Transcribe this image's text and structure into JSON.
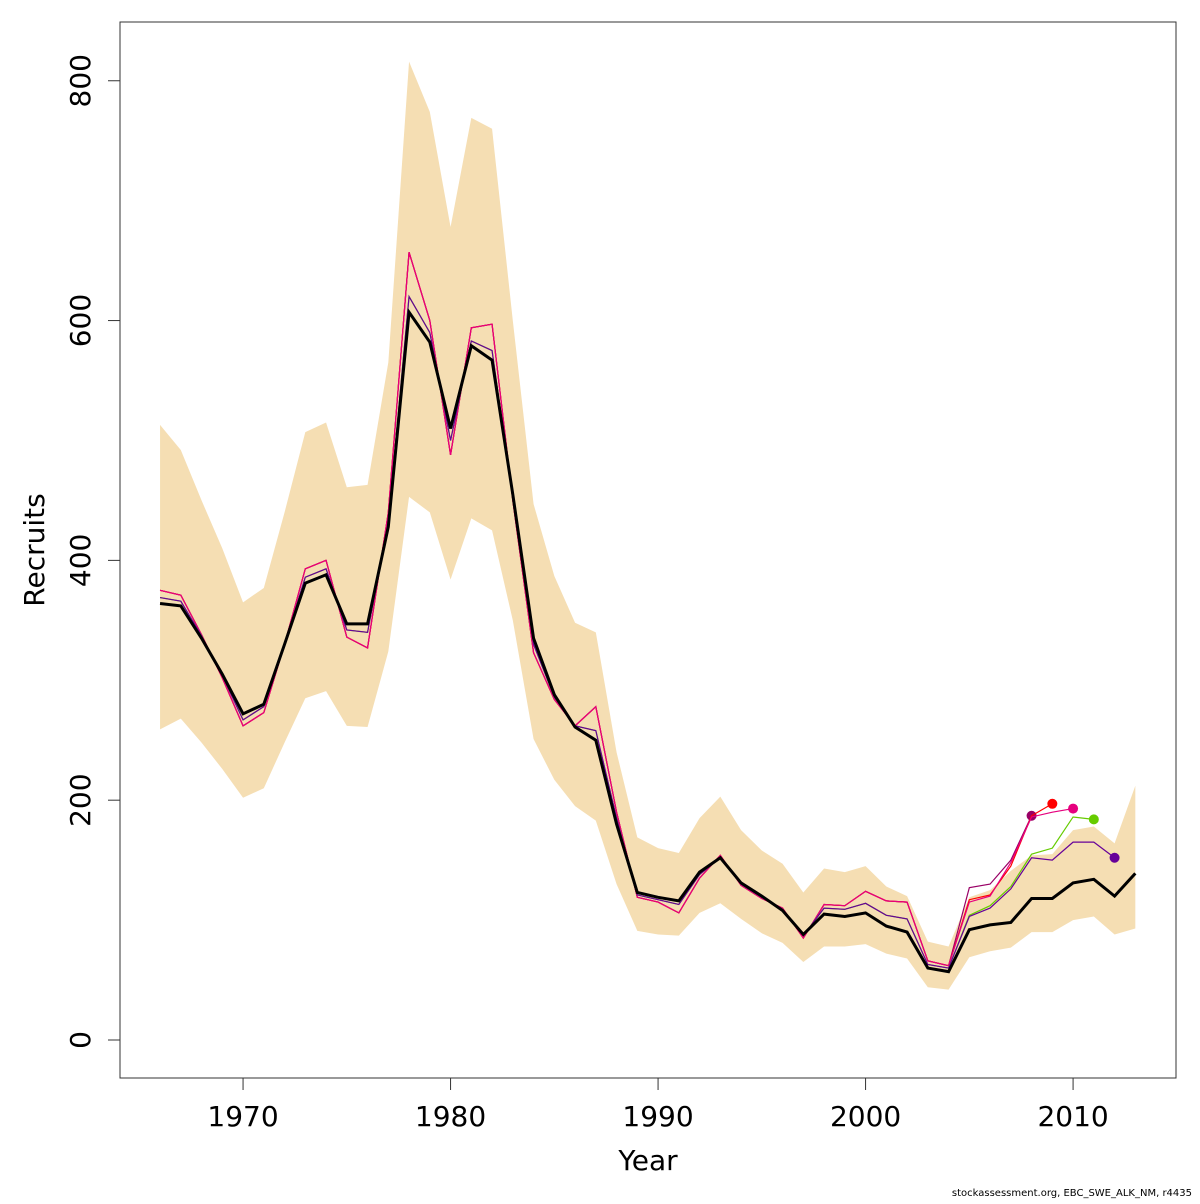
{
  "chart_data": {
    "type": "line",
    "x_label": "Year",
    "y_label": "Recruits",
    "footnote": "stockassessment.org, EBC_SWE_ALK_NM, r4435",
    "xlim": [
      1964.07,
      2014.96
    ],
    "ylim": [
      -31.7,
      849
    ],
    "xticks": [
      1970,
      1980,
      1990,
      2000,
      2010
    ],
    "yticks": [
      0,
      200,
      400,
      600,
      800
    ],
    "x": [
      1966,
      1967,
      1968,
      1969,
      1970,
      1971,
      1972,
      1973,
      1974,
      1975,
      1976,
      1977,
      1978,
      1979,
      1980,
      1981,
      1982,
      1983,
      1984,
      1985,
      1986,
      1987,
      1988,
      1989,
      1990,
      1991,
      1992,
      1993,
      1994,
      1995,
      1996,
      1997,
      1998,
      1999,
      2000,
      2001,
      2002,
      2003,
      2004,
      2005,
      2006,
      2007,
      2008,
      2009,
      2010,
      2011,
      2012,
      2013
    ],
    "band": {
      "color": "#f5deb3",
      "upper": [
        513,
        492,
        450,
        410,
        365,
        377,
        440,
        507,
        515,
        461,
        463,
        565,
        816,
        774,
        678,
        769,
        760,
        600,
        447,
        387,
        348,
        340,
        240,
        169,
        160,
        156,
        185,
        203,
        175,
        158,
        147,
        123,
        143,
        140,
        145,
        128,
        120,
        82,
        78,
        119,
        125,
        141,
        154,
        155,
        175,
        178,
        164,
        212
      ],
      "lower": [
        259,
        268,
        248,
        226,
        202,
        210,
        248,
        285,
        291,
        262,
        261,
        324,
        453,
        440,
        384,
        435,
        425,
        350,
        251,
        217,
        195,
        183,
        130,
        91,
        88,
        87,
        106,
        114,
        101,
        89,
        81,
        65,
        78,
        78,
        80,
        72,
        68,
        44,
        42,
        69,
        74,
        77,
        90,
        90,
        100,
        103,
        88,
        93
      ]
    },
    "series": [
      {
        "color": "#990066",
        "values": [
          375,
          371,
          338,
          302,
          262,
          273,
          330,
          393,
          400,
          336,
          327,
          440,
          657,
          600,
          488,
          594,
          597,
          450,
          323,
          284,
          262,
          278,
          190,
          119,
          115,
          106,
          135,
          154,
          129,
          118,
          110,
          85,
          113,
          112,
          124,
          116,
          115,
          66,
          62,
          127,
          130,
          150,
          187,
          null,
          null,
          null,
          null,
          null
        ]
      },
      {
        "color": "#ff0000",
        "values": [
          375,
          371,
          338,
          302,
          262,
          273,
          330,
          393,
          400,
          336,
          327,
          440,
          657,
          600,
          488,
          594,
          597,
          450,
          323,
          284,
          262,
          278,
          190,
          119,
          115,
          106,
          135,
          154,
          129,
          118,
          110,
          85,
          113,
          112,
          124,
          116,
          115,
          66,
          62,
          117,
          121,
          145,
          187,
          197,
          null,
          null,
          null,
          null
        ]
      },
      {
        "color": "#e6007e",
        "values": [
          375,
          371,
          338,
          302,
          262,
          273,
          330,
          393,
          400,
          336,
          327,
          440,
          657,
          600,
          488,
          594,
          597,
          450,
          323,
          284,
          262,
          278,
          190,
          119,
          115,
          106,
          135,
          154,
          129,
          118,
          110,
          85,
          113,
          112,
          124,
          116,
          115,
          66,
          62,
          115,
          120,
          148,
          186,
          190,
          193,
          null,
          null,
          null
        ]
      },
      {
        "color": "#66cc00",
        "values": [
          369,
          366,
          337,
          304,
          267,
          278,
          330,
          386,
          393,
          342,
          340,
          432,
          620,
          590,
          500,
          583,
          575,
          452,
          330,
          286,
          262,
          258,
          185,
          121,
          117,
          113,
          138,
          152,
          130,
          119,
          109,
          87,
          110,
          109,
          114,
          104,
          101,
          63,
          60,
          104,
          112,
          128,
          155,
          160,
          186,
          184,
          null,
          null
        ]
      },
      {
        "color": "#660099",
        "values": [
          369,
          366,
          337,
          304,
          267,
          278,
          330,
          386,
          393,
          342,
          340,
          432,
          620,
          590,
          500,
          583,
          575,
          452,
          330,
          286,
          262,
          258,
          185,
          121,
          117,
          113,
          138,
          152,
          130,
          119,
          109,
          87,
          110,
          109,
          114,
          104,
          101,
          63,
          60,
          103,
          110,
          126,
          152,
          150,
          165,
          165,
          152,
          null
        ]
      },
      {
        "color": "#000000",
        "values": [
          364,
          362,
          335,
          305,
          272,
          280,
          330,
          381,
          388,
          347,
          347,
          428,
          607,
          582,
          510,
          579,
          567,
          455,
          335,
          288,
          261,
          250,
          180,
          123,
          119,
          116,
          140,
          152,
          131,
          120,
          108,
          88,
          105,
          103,
          106,
          95,
          90,
          60,
          57,
          92,
          96,
          98,
          118,
          118,
          131,
          134,
          120,
          139
        ]
      }
    ]
  }
}
